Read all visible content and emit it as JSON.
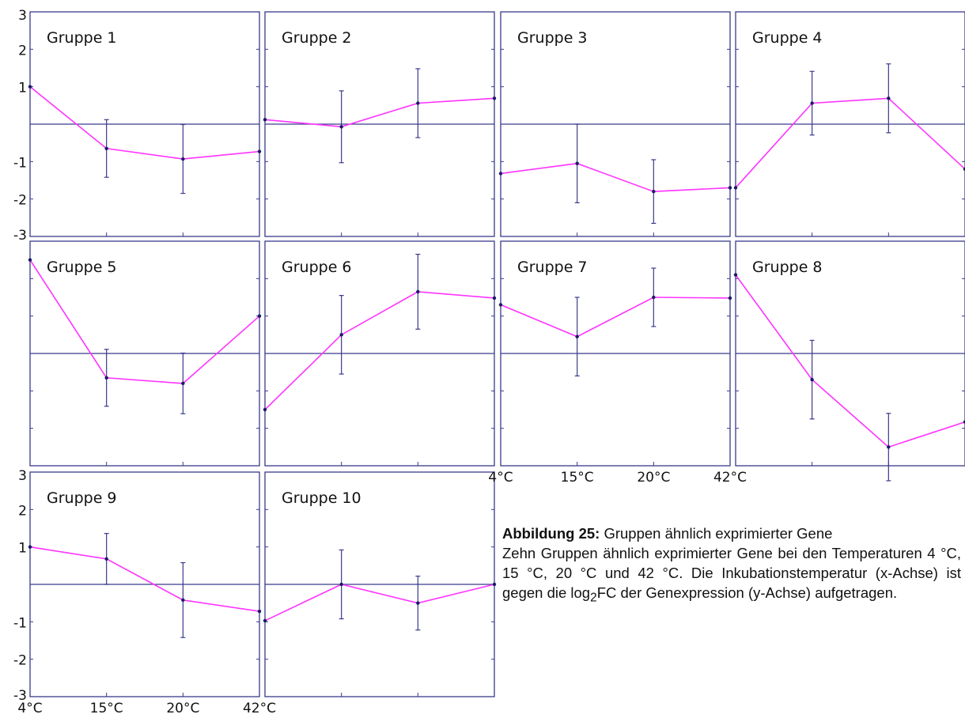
{
  "colors": {
    "axes": "#3a3a8c",
    "series": "#ff33ff",
    "marker": "#1a1a66",
    "zero_line": "#3a3a8c"
  },
  "caption": {
    "label": "Abbildung 25:",
    "title": " Gruppen ähnlich exprimierter Gene",
    "body_before_sub": "Zehn Gruppen ähnlich exprimierter Gene bei den Temperaturen 4 °C, 15 °C, 20 °C und 42 °C. Die Inkubationstemperatur (x-Achse) ist gegen die log",
    "subscript": "2",
    "body_after_sub": "FC der Genexpression (y-Achse) aufgetragen."
  },
  "chart_data": {
    "type": "line",
    "x_categories": [
      "4°C",
      "15°C",
      "20°C",
      "42°C"
    ],
    "y_ticks": [
      "3",
      "2",
      "1",
      "-1",
      "-2",
      "-3"
    ],
    "ylim": [
      -3,
      3
    ],
    "grid": false,
    "panels": [
      {
        "title": "Gruppe 1",
        "values": [
          1.0,
          -0.65,
          -0.93,
          -0.73
        ],
        "err": [
          null,
          0.77,
          0.92,
          null
        ]
      },
      {
        "title": "Gruppe 2",
        "values": [
          0.12,
          -0.07,
          0.56,
          0.69
        ],
        "err": [
          null,
          0.96,
          0.92,
          null
        ]
      },
      {
        "title": "Gruppe 3",
        "values": [
          -1.32,
          -1.05,
          -1.8,
          -1.7
        ],
        "err": [
          null,
          1.05,
          0.85,
          null
        ]
      },
      {
        "title": "Gruppe 4",
        "values": [
          -1.7,
          0.56,
          0.69,
          -1.2
        ],
        "err": [
          null,
          0.85,
          0.92,
          null
        ]
      },
      {
        "title": "Gruppe 5",
        "values": [
          2.5,
          -0.65,
          -0.8,
          1.0
        ],
        "err": [
          null,
          0.76,
          0.81,
          null
        ]
      },
      {
        "title": "Gruppe 6",
        "values": [
          -1.5,
          0.5,
          1.65,
          1.48
        ],
        "err": [
          null,
          1.05,
          1.0,
          null
        ]
      },
      {
        "title": "Gruppe 7",
        "values": [
          1.3,
          0.45,
          1.5,
          1.48
        ],
        "err": [
          null,
          1.05,
          0.78,
          null
        ]
      },
      {
        "title": "Gruppe 8",
        "values": [
          2.1,
          -0.7,
          -2.5,
          -1.83
        ],
        "err": [
          null,
          1.05,
          0.9,
          null
        ]
      },
      {
        "title": "Gruppe 9",
        "values": [
          1.0,
          0.68,
          -0.42,
          -0.72
        ],
        "err": [
          null,
          0.68,
          1.0,
          null
        ]
      },
      {
        "title": "Gruppe 10",
        "values": [
          -0.97,
          0.0,
          -0.5,
          0.0
        ],
        "err": [
          null,
          0.92,
          0.72,
          null
        ]
      }
    ]
  }
}
